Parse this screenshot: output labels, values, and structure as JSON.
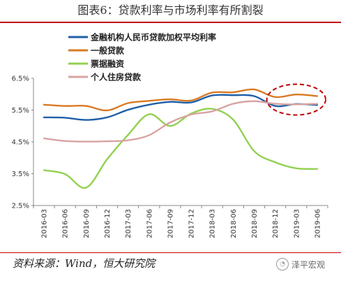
{
  "figure": {
    "title": "图表6：贷款利率与市场利率有所割裂",
    "source": "资料来源：Wind，恒大研究院",
    "watermark": "泽平宏观"
  },
  "chart_data": {
    "type": "line",
    "categories": [
      "2016-03",
      "2016-06",
      "2016-09",
      "2016-12",
      "2017-03",
      "2017-06",
      "2017-09",
      "2017-12",
      "2018-03",
      "2018-06",
      "2018-09",
      "2018-12",
      "2019-03",
      "2019-06"
    ],
    "ylim": [
      2.5,
      6.5
    ],
    "yticks": [
      "2.5%",
      "3.5%",
      "4.5%",
      "5.5%",
      "6.5%"
    ],
    "ytick_values": [
      2.5,
      3.5,
      4.5,
      5.5,
      6.5
    ],
    "grid": false,
    "legend_position": "top-left",
    "series": [
      {
        "name": "金融机构人民币贷款加权平均利率",
        "color": "#1f5fa8",
        "values": [
          5.27,
          5.26,
          5.19,
          5.27,
          5.51,
          5.67,
          5.76,
          5.74,
          5.96,
          5.97,
          5.94,
          5.63,
          5.69,
          5.66
        ]
      },
      {
        "name": "一般贷款",
        "color": "#d97a23",
        "values": [
          5.67,
          5.63,
          5.63,
          5.49,
          5.72,
          5.79,
          5.84,
          5.8,
          6.05,
          6.06,
          6.15,
          5.91,
          5.99,
          5.94
        ]
      },
      {
        "name": "票据融资",
        "color": "#92d050",
        "values": [
          3.61,
          3.49,
          3.06,
          3.95,
          4.72,
          5.37,
          5.0,
          5.39,
          5.54,
          5.2,
          4.21,
          3.86,
          3.67,
          3.65
        ]
      },
      {
        "name": "个人住房贷款",
        "color": "#d8a3a3",
        "values": [
          4.61,
          4.53,
          4.51,
          4.52,
          4.55,
          4.71,
          5.11,
          5.36,
          5.46,
          5.7,
          5.78,
          5.7,
          5.68,
          5.7
        ]
      }
    ],
    "annotation": {
      "shape": "dashed-ellipse",
      "color": "#c00000",
      "around_categories": [
        "2018-12",
        "2019-06"
      ]
    }
  }
}
